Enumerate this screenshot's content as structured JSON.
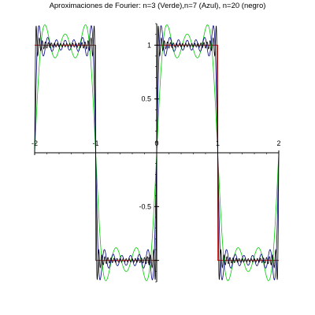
{
  "chart_data": {
    "type": "line",
    "title": "Aproximaciones de Fourier: n=3 (Verde),n=7 (Azul), n=20 (negro)",
    "xlabel": "",
    "ylabel": "",
    "xlim": [
      -2,
      2
    ],
    "ylim": [
      -1.2,
      1.2
    ],
    "x_ticks": [
      -2,
      -1,
      0,
      1,
      2
    ],
    "x_tick_labels": [
      "-2",
      "-1",
      "0",
      "1",
      "2"
    ],
    "y_ticks": [
      -1,
      -0.5,
      0.5,
      1
    ],
    "y_tick_labels": [
      "-1",
      "-0.5",
      "0.5",
      "1"
    ],
    "grid": false,
    "legend": "none",
    "function": "square wave of period 2: f(x) = 1 on (0,1), -1 on (1,2)",
    "series": [
      {
        "terms": 0,
        "color": "#cc0000",
        "kind": "square-wave"
      },
      {
        "terms": 3,
        "color": "#00cc00",
        "kind": "fourier"
      },
      {
        "terms": 7,
        "color": "#000080",
        "kind": "fourier"
      },
      {
        "terms": 20,
        "color": "#000000",
        "kind": "fourier"
      }
    ]
  }
}
